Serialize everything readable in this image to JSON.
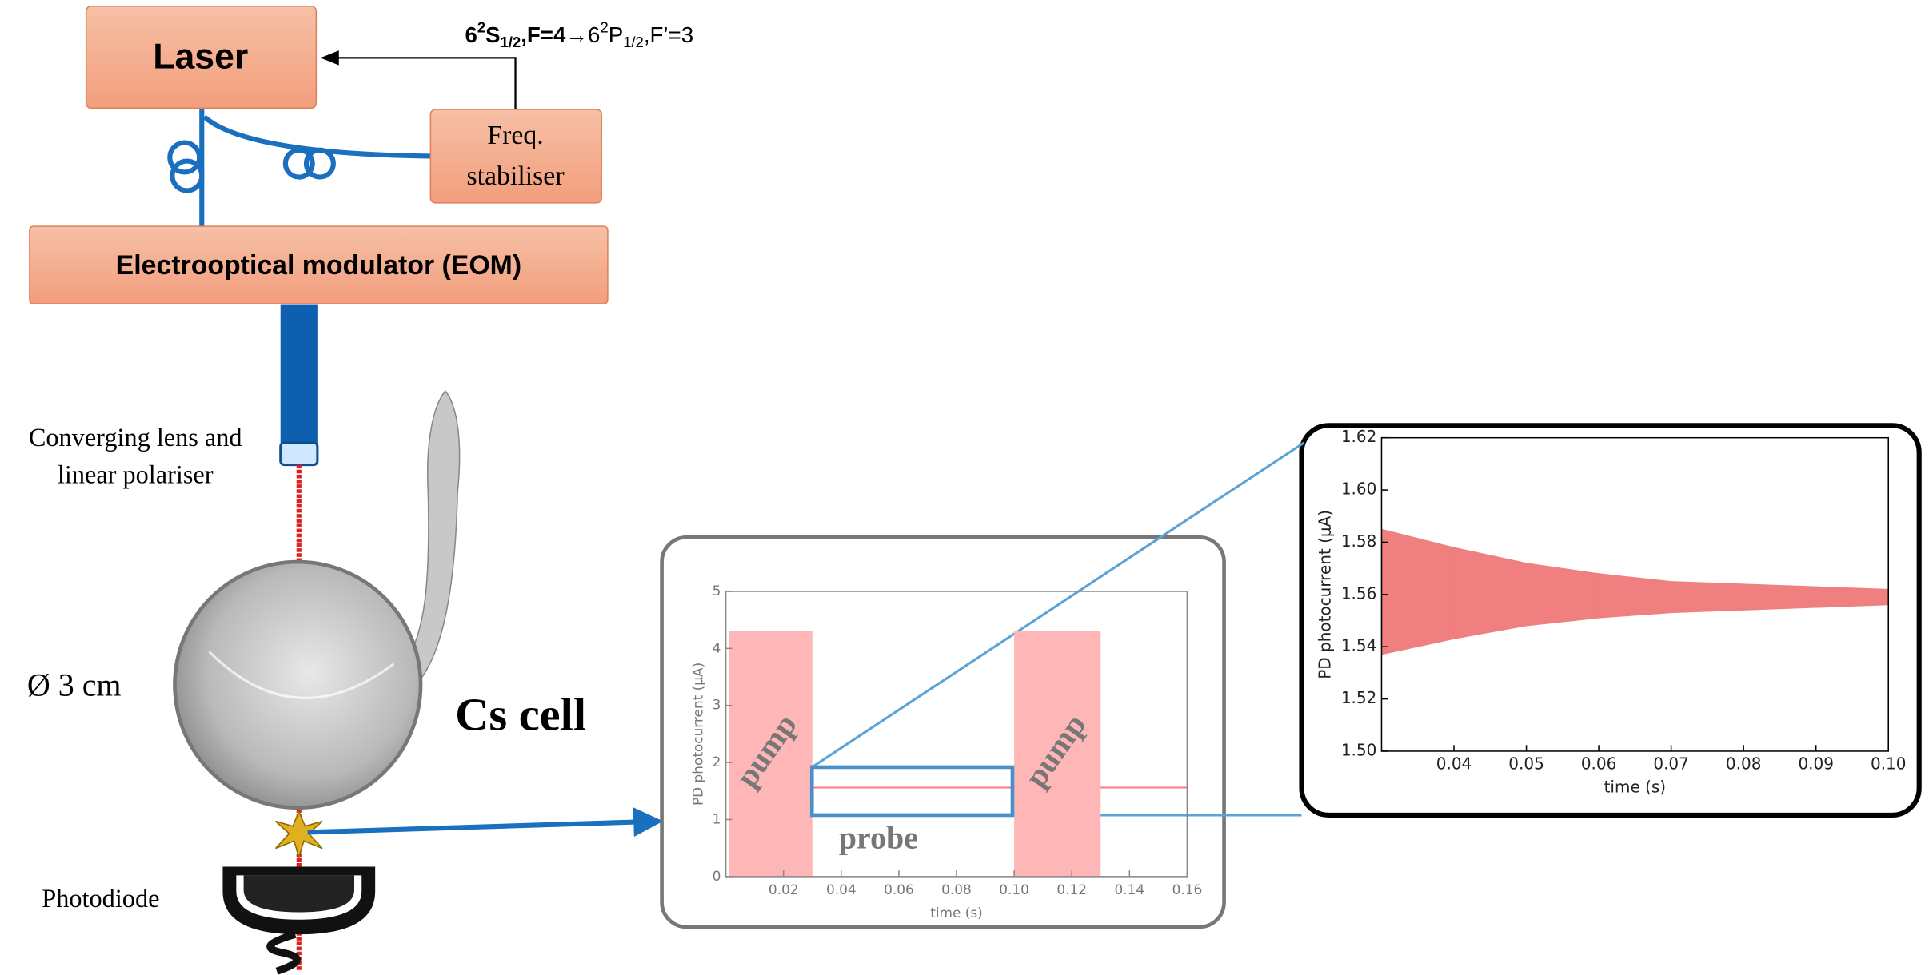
{
  "laser": "Laser",
  "freq_stabiliser": [
    "Freq.",
    "stabiliser"
  ],
  "eom": "Electrooptical modulator (EOM)",
  "lens": [
    "Converging lens and",
    "linear polariser"
  ],
  "diameter": "Ø 3 cm",
  "cs_cell": "Cs cell",
  "photodiode": "Photodiode",
  "transition": [
    "6",
    "2",
    "S",
    "1/2",
    ",F=4",
    "→6",
    "2",
    "P",
    "1/2",
    ",F’=3"
  ],
  "inset": {
    "type": "bar",
    "xlabel": "time (s)",
    "ylabel": "PD photocurrent (μA)",
    "xlim": [
      0,
      0.16
    ],
    "ylim": [
      0,
      5
    ],
    "xticks": [
      0.02,
      0.04,
      0.06,
      0.08,
      {
        "value": 0.1,
        "label": "0.10"
      },
      0.12,
      0.14,
      0.16
    ],
    "yticks": [
      0,
      1,
      2,
      3,
      4,
      5
    ],
    "annotations": [
      "pump",
      "pump",
      "probe"
    ],
    "pump": {
      "color": "#ffb6b6",
      "x": [
        [
          0.001,
          0.03
        ],
        [
          0.1,
          0.13
        ]
      ],
      "values": [
        4.3,
        4.3
      ]
    },
    "probe": {
      "color": "#f08a8a",
      "x": [
        [
          0.03,
          0.1
        ],
        [
          0.13,
          0.16
        ]
      ],
      "values": [
        1.56,
        1.56
      ]
    }
  },
  "zoom": {
    "type": "band",
    "xlabel": "time (s)",
    "ylabel": "PD photocurrent (μA)",
    "xlim": [
      0.03,
      0.1
    ],
    "ylim": [
      1.5,
      1.62
    ],
    "xticks": [
      0.04,
      0.05,
      0.06,
      0.07,
      0.08,
      0.09,
      {
        "value": 0.1,
        "label": "0.10"
      }
    ],
    "yticks": [
      {
        "value": 1.5,
        "label": "1.50"
      },
      1.52,
      1.54,
      1.56,
      1.58,
      {
        "value": 1.6,
        "label": "1.60"
      },
      1.62
    ],
    "color": "#f07f7f",
    "x": [
      0.03,
      0.04,
      0.05,
      0.06,
      0.07,
      0.08,
      0.09,
      0.1
    ],
    "upper": [
      1.585,
      1.578,
      1.572,
      1.568,
      1.565,
      1.564,
      1.563,
      1.562
    ],
    "lower": [
      1.537,
      1.543,
      1.548,
      1.551,
      1.553,
      1.554,
      1.555,
      1.556
    ]
  }
}
